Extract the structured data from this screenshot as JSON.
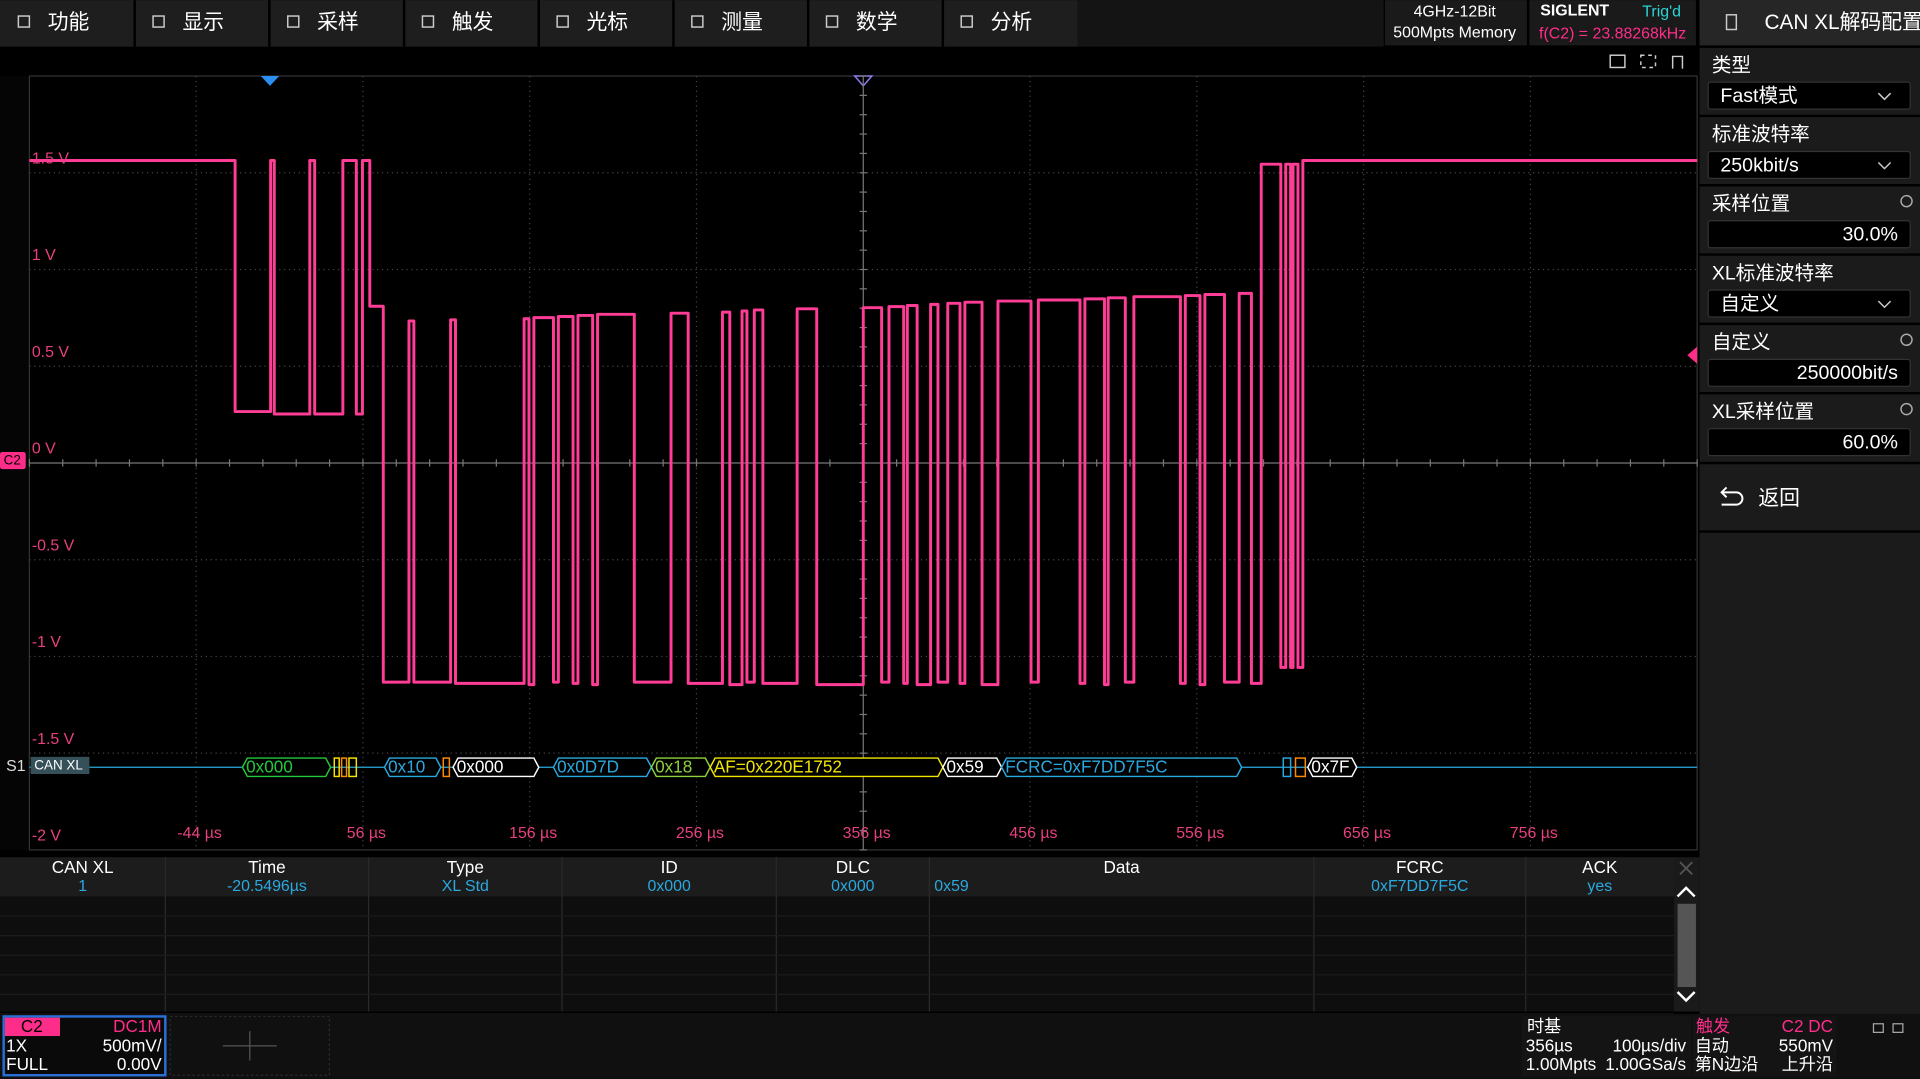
{
  "menu": [
    "功能",
    "显示",
    "采样",
    "触发",
    "光标",
    "测量",
    "数学",
    "分析"
  ],
  "status": {
    "spec": "4GHz-12Bit",
    "memory": "500Mpts Memory",
    "brand": "SIGLENT",
    "trig_state": "Trig'd",
    "frequency": "f(C2) = 23.88268kHz"
  },
  "panel": {
    "title": "CAN XL解码配置",
    "items": [
      {
        "label": "类型",
        "value": "Fast模式",
        "kind": "dropdown"
      },
      {
        "label": "标准波特率",
        "value": "250kbit/s",
        "kind": "dropdown"
      },
      {
        "label": "采样位置",
        "value": "30.0%",
        "kind": "input"
      },
      {
        "label": "XL标准波特率",
        "value": "自定义",
        "kind": "dropdown"
      },
      {
        "label": "自定义",
        "value": "250000bit/s",
        "kind": "input"
      },
      {
        "label": "XL采样位置",
        "value": "60.0%",
        "kind": "input"
      }
    ],
    "back": "返回"
  },
  "display": {
    "y_labels": [
      "1.5 V",
      "1 V",
      "0.5 V",
      "0 V",
      "-0.5 V",
      "-1 V",
      "-1.5 V",
      "-2 V"
    ],
    "x_labels": [
      "-44 µs",
      "56 µs",
      "156 µs",
      "256 µs",
      "356 µs",
      "456 µs",
      "556 µs",
      "656 µs",
      "756 µs"
    ],
    "channel": "C2",
    "bus_label": "S1",
    "bus_name": "CAN XL",
    "decode": [
      {
        "text": "0x000",
        "color": "#22c93a"
      },
      {
        "text": "0x10",
        "color": "#2aa9e0"
      },
      {
        "text": "0x000",
        "color": "#ffffff"
      },
      {
        "text": "0x0D7D",
        "color": "#2aa9e0"
      },
      {
        "text": "0x18",
        "color": "#8fd13a"
      },
      {
        "text": "AF=0x220E1752",
        "color": "#f2e600"
      },
      {
        "text": "0x59",
        "color": "#ffffff"
      },
      {
        "text": "FCRC=0xF7DD7F5C",
        "color": "#2aa9e0"
      },
      {
        "text": "0x7F",
        "color": "#ffffff"
      }
    ]
  },
  "table": {
    "headers": [
      "CAN XL",
      "Time",
      "Type",
      "ID",
      "DLC",
      "Data",
      "FCRC",
      "ACK"
    ],
    "rows": [
      [
        "1",
        "-20.5496µs",
        "XL Std",
        "0x000",
        "0x000",
        "0x59",
        "0xF7DD7F5C",
        "yes"
      ]
    ]
  },
  "bottom": {
    "channel": {
      "name": "C2",
      "coupling": "DC1M",
      "probe": "1X",
      "scale": "500mV/",
      "bandwidth": "FULL",
      "offset": "0.00V"
    },
    "timebase": {
      "title": "时基",
      "delay": "356µs",
      "scale": "100µs/div",
      "points": "1.00Mpts",
      "rate": "1.00GSa/s"
    },
    "trigger": {
      "title": "触发",
      "source": "C2 DC",
      "mode": "自动",
      "level": "550mV",
      "type": "第N边沿",
      "slope": "上升沿"
    }
  }
}
